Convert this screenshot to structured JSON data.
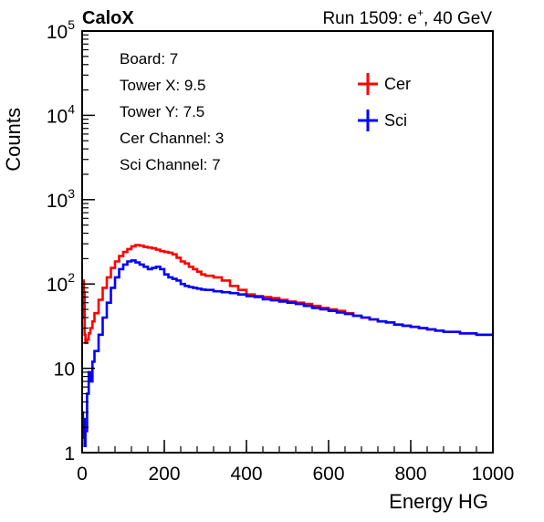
{
  "header": {
    "experiment": "CaloX",
    "run_prefix": "Run 1509: e",
    "run_sup": "+",
    "run_suffix": ", 40 GeV"
  },
  "info_box": {
    "lines": [
      "Board: 7",
      "Tower X: 9.5",
      "Tower Y: 7.5",
      "Cer Channel: 3",
      "Sci Channel: 7"
    ]
  },
  "chart_data": {
    "type": "line",
    "title": "",
    "xlabel": "Energy HG",
    "ylabel": "Counts",
    "xlim": [
      0,
      1000
    ],
    "ylim": [
      1,
      100000
    ],
    "yscale": "log",
    "x_ticks": [
      {
        "value": 0,
        "label": "0"
      },
      {
        "value": 200,
        "label": "200"
      },
      {
        "value": 400,
        "label": "400"
      },
      {
        "value": 600,
        "label": "600"
      },
      {
        "value": 800,
        "label": "800"
      },
      {
        "value": 1000,
        "label": "1000"
      }
    ],
    "y_ticks": [
      {
        "value": 1,
        "label": "1",
        "base": "1",
        "exp": ""
      },
      {
        "value": 10,
        "label": "10",
        "base": "10",
        "exp": ""
      },
      {
        "value": 100,
        "label": "10^2",
        "base": "10",
        "exp": "2"
      },
      {
        "value": 1000,
        "label": "10^3",
        "base": "10",
        "exp": "3"
      },
      {
        "value": 10000,
        "label": "10^4",
        "base": "10",
        "exp": "4"
      },
      {
        "value": 100000,
        "label": "10^5",
        "base": "10",
        "exp": "5"
      }
    ],
    "x": [
      0,
      2,
      4,
      6,
      8,
      12,
      16,
      20,
      25,
      30,
      40,
      50,
      60,
      70,
      80,
      90,
      100,
      110,
      120,
      130,
      140,
      150,
      160,
      170,
      180,
      190,
      200,
      210,
      220,
      230,
      240,
      250,
      260,
      270,
      280,
      290,
      300,
      320,
      340,
      360,
      380,
      400,
      420,
      440,
      460,
      480,
      500,
      520,
      540,
      560,
      580,
      600,
      620,
      640,
      660,
      680,
      700,
      720,
      740,
      760,
      780,
      800,
      820,
      840,
      860,
      880,
      900,
      920,
      940,
      960,
      980,
      1000
    ],
    "series": [
      {
        "name": "Cer",
        "color": "#ff0000",
        "values": [
          40,
          110,
          80,
          25,
          20,
          22,
          26,
          30,
          36,
          45,
          65,
          90,
          120,
          155,
          185,
          215,
          240,
          260,
          280,
          290,
          285,
          275,
          270,
          265,
          255,
          245,
          240,
          235,
          225,
          205,
          185,
          175,
          160,
          150,
          140,
          130,
          125,
          120,
          110,
          95,
          85,
          75,
          72,
          70,
          68,
          65,
          62,
          60,
          58,
          55,
          52,
          50,
          48,
          45,
          42,
          40,
          38,
          36,
          35,
          33,
          32,
          31,
          30,
          29,
          28,
          27,
          27,
          26,
          26,
          25,
          25,
          25
        ]
      },
      {
        "name": "Sci",
        "color": "#0000ff",
        "values": [
          3,
          1.5,
          2.5,
          1.2,
          1.8,
          5,
          9,
          7,
          12,
          16,
          25,
          40,
          60,
          90,
          120,
          150,
          170,
          185,
          190,
          180,
          170,
          160,
          150,
          155,
          160,
          150,
          130,
          120,
          115,
          110,
          100,
          95,
          92,
          90,
          88,
          86,
          85,
          82,
          80,
          78,
          75,
          72,
          70,
          66,
          64,
          62,
          60,
          58,
          55,
          52,
          50,
          48,
          46,
          44,
          42,
          40,
          38,
          36,
          35,
          33,
          32,
          31,
          30,
          29,
          28,
          27,
          27,
          26,
          26,
          25,
          25,
          25
        ]
      }
    ]
  }
}
